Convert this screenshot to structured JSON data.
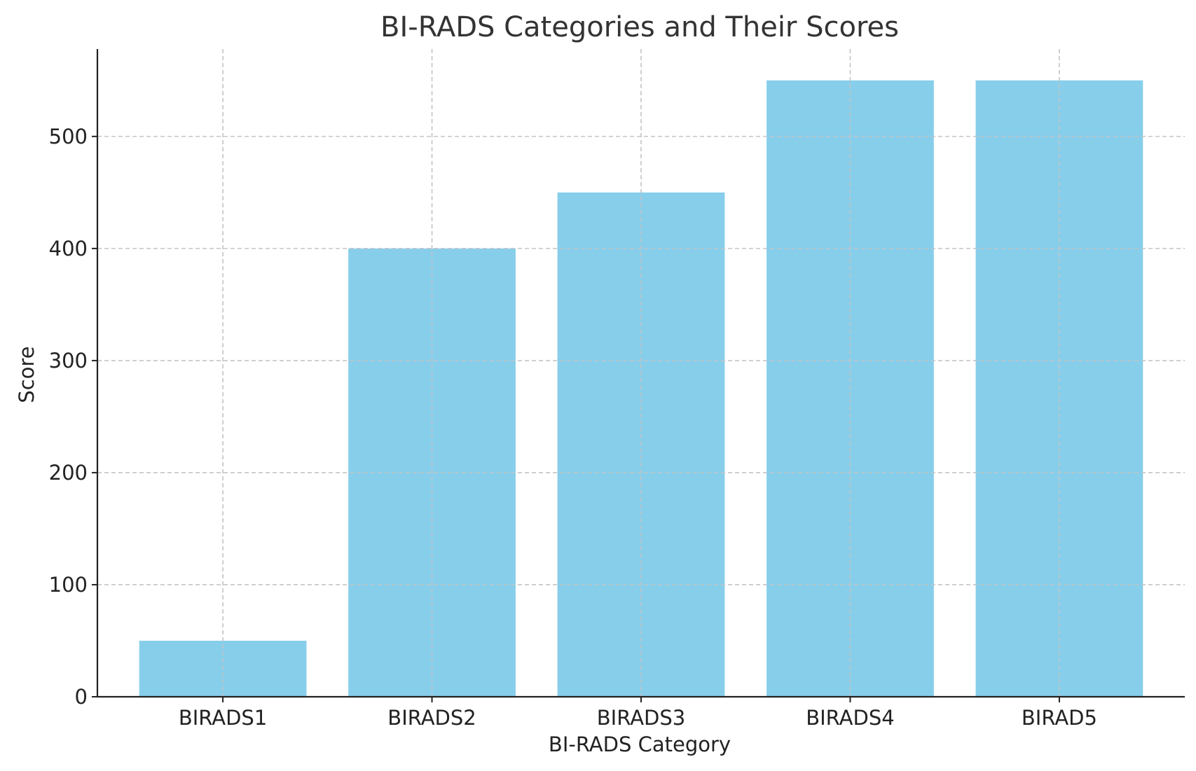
{
  "chart_data": {
    "type": "bar",
    "title": "BI-RADS Categories and Their Scores",
    "xlabel": "BI-RADS Category",
    "ylabel": "Score",
    "categories": [
      "BIRADS1",
      "BIRADS2",
      "BIRADS3",
      "BIRADS4",
      "BIRAD5"
    ],
    "values": [
      50,
      400,
      450,
      550,
      550
    ],
    "ylim": [
      0,
      578
    ],
    "yticks": [
      0,
      100,
      200,
      300,
      400,
      500
    ],
    "grid": true,
    "bar_color": "#87CEEB",
    "grid_color": "#c4c4c4",
    "axis_color": "#222222",
    "title_color": "#333333"
  }
}
